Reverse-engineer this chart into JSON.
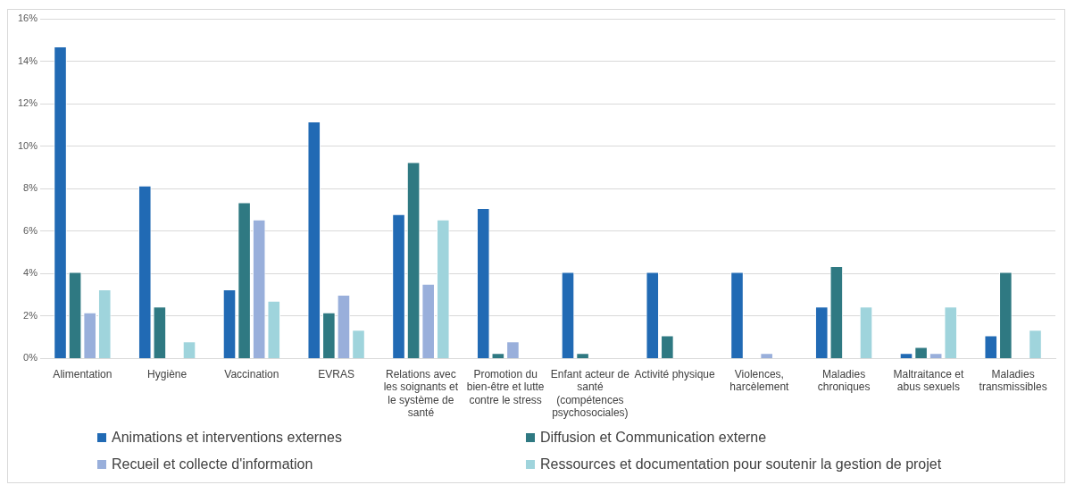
{
  "chart_data": {
    "type": "bar",
    "categories": [
      "Alimentation",
      "Hygiène",
      "Vaccination",
      "EVRAS",
      "Relations avec les soignants et le système de santé",
      "Promotion du bien-être et lutte contre le stress",
      "Enfant acteur de santé (compétences psychosociales)",
      "Activité physique",
      "Violences, harcèlement",
      "Maladies chroniques",
      "Maltraitance et abus sexuels",
      "Maladies transmissibles"
    ],
    "series": [
      {
        "name": "Animations et interventions externes",
        "color": "#216ab4",
        "values": [
          14.7,
          8.15,
          3.26,
          11.16,
          6.8,
          7.08,
          4.08,
          4.08,
          4.08,
          2.45,
          0.26,
          1.09
        ]
      },
      {
        "name": "Diffusion et Communication externe",
        "color": "#2f7982",
        "values": [
          4.08,
          2.45,
          7.36,
          2.17,
          9.25,
          0.26,
          0.26,
          1.09,
          0,
          4.35,
          0.54,
          4.08
        ]
      },
      {
        "name": "Recueil et collecte d'information",
        "color": "#99afdb",
        "values": [
          2.17,
          0,
          6.55,
          3.0,
          3.52,
          0.81,
          0,
          0,
          0.26,
          0,
          0.26,
          0
        ]
      },
      {
        "name": "Ressources et documentation pour soutenir la gestion de projet",
        "color": "#9fd4dc",
        "values": [
          3.26,
          0.81,
          2.72,
          1.35,
          6.55,
          0,
          0,
          0,
          0,
          2.45,
          2.45,
          1.35
        ]
      }
    ],
    "ylim": [
      0,
      16
    ],
    "yticks": [
      {
        "value": 0,
        "label": "0%"
      },
      {
        "value": 2,
        "label": "2%"
      },
      {
        "value": 4,
        "label": "4%"
      },
      {
        "value": 6,
        "label": "6%"
      },
      {
        "value": 8,
        "label": "8%"
      },
      {
        "value": 10,
        "label": "10%"
      },
      {
        "value": 12,
        "label": "12%"
      },
      {
        "value": 14,
        "label": "14%"
      },
      {
        "value": 16,
        "label": "16%"
      }
    ],
    "grid": "y",
    "legend": "bottom"
  }
}
